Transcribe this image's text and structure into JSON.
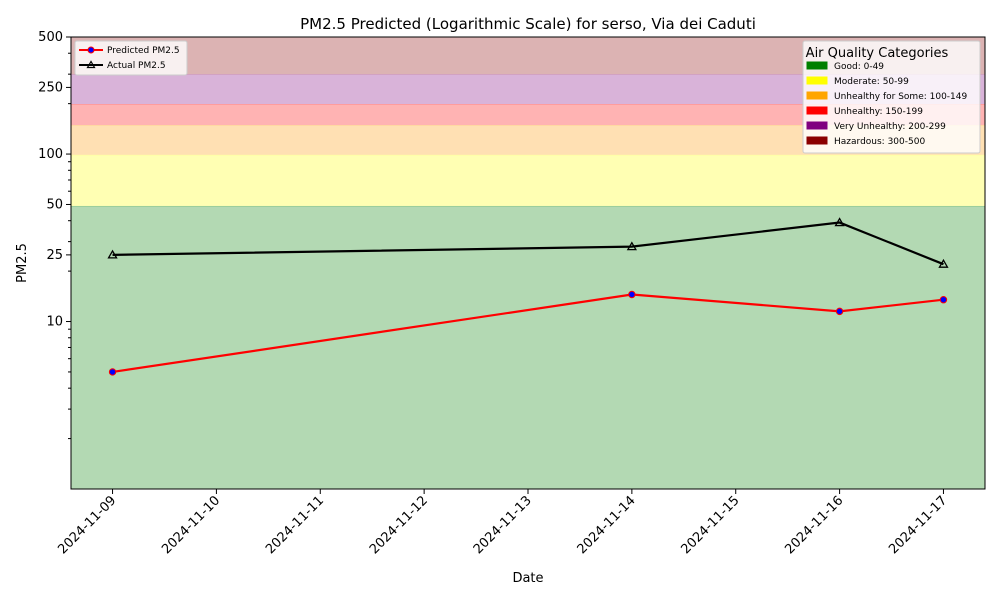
{
  "chart_data": {
    "type": "line",
    "title": "PM2.5 Predicted (Logarithmic Scale) for serso, Via dei Caduti",
    "xlabel": "Date",
    "ylabel": "PM2.5",
    "yscale": "log",
    "ylim": [
      1,
      500
    ],
    "xlim": [
      "2024-11-08",
      "2024-11-17"
    ],
    "x_ticks": [
      "2024-11-09",
      "2024-11-10",
      "2024-11-11",
      "2024-11-12",
      "2024-11-13",
      "2024-11-14",
      "2024-11-15",
      "2024-11-16",
      "2024-11-17"
    ],
    "y_ticks": [
      10,
      25,
      50,
      100,
      250,
      500
    ],
    "grid": false,
    "series": [
      {
        "name": "Predicted PM2.5",
        "color": "#ff0000",
        "marker_color": "#0000ff",
        "marker": "circle",
        "x": [
          "2024-11-09",
          "2024-11-14",
          "2024-11-16",
          "2024-11-17"
        ],
        "values": [
          5,
          14.5,
          11.5,
          13.5
        ]
      },
      {
        "name": "Actual PM2.5",
        "color": "#000000",
        "marker": "triangle",
        "x": [
          "2024-11-09",
          "2024-11-14",
          "2024-11-16",
          "2024-11-17"
        ],
        "values": [
          25,
          28,
          39,
          22
        ]
      }
    ],
    "legend_series_position": "top-left",
    "categories_legend": {
      "title": "Air Quality Categories",
      "position": "top-right",
      "items": [
        {
          "label": "Good: 0-49",
          "color": "#008000",
          "band_color": "#b3d9b3",
          "range": [
            0,
            49
          ]
        },
        {
          "label": "Moderate: 50-99",
          "color": "#ffff00",
          "band_color": "#ffffb3",
          "range": [
            49,
            99
          ]
        },
        {
          "label": "Unhealthy for Some: 100-149",
          "color": "#ffa500",
          "band_color": "#ffe0b3",
          "range": [
            99,
            149
          ]
        },
        {
          "label": "Unhealthy: 150-199",
          "color": "#ff0000",
          "band_color": "#ffb3b3",
          "range": [
            149,
            199
          ]
        },
        {
          "label": "Very Unhealthy: 200-299",
          "color": "#800080",
          "band_color": "#d9b3d9",
          "range": [
            199,
            299
          ]
        },
        {
          "label": "Hazardous: 300-500",
          "color": "#8b0000",
          "band_color": "#dcb3b3",
          "range": [
            299,
            500
          ]
        }
      ]
    }
  }
}
